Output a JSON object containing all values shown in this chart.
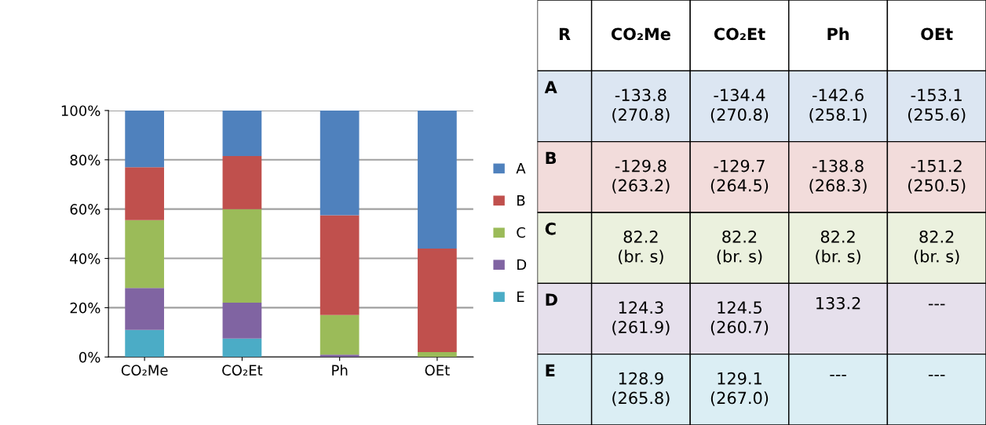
{
  "chart_data": [
    {
      "type": "bar",
      "stacked": true,
      "categories": [
        "CO₂Me",
        "CO₂Et",
        "Ph",
        "OEt"
      ],
      "ylim": [
        0,
        100
      ],
      "yticks": [
        {
          "value": 0,
          "label": "0%"
        },
        {
          "value": 20,
          "label": "20%"
        },
        {
          "value": 40,
          "label": "40%"
        },
        {
          "value": 60,
          "label": "60%"
        },
        {
          "value": 80,
          "label": "80%"
        },
        {
          "value": 100,
          "label": "100%"
        }
      ],
      "grid": "y",
      "legend": "right",
      "series": [
        {
          "name": "E",
          "color": "#4bacc6",
          "values": [
            11,
            7.5,
            0,
            0
          ]
        },
        {
          "name": "D",
          "color": "#8064a2",
          "values": [
            17,
            14.5,
            1,
            0
          ]
        },
        {
          "name": "C",
          "color": "#9bbb59",
          "values": [
            27.5,
            38,
            16,
            2
          ]
        },
        {
          "name": "B",
          "color": "#c0504d",
          "values": [
            21.5,
            21.5,
            40.5,
            42
          ]
        },
        {
          "name": "A",
          "color": "#4f81bd",
          "values": [
            23,
            18.5,
            42.5,
            56
          ]
        }
      ]
    },
    {
      "type": "other",
      "ylabel": "R",
      "categories": [
        "CO₂Me",
        "CO₂Et",
        "Ph",
        "OEt"
      ],
      "y_categories": [
        "A",
        "B",
        "C",
        "D",
        "E"
      ],
      "cell_labels": [
        [
          "-133.8\n(270.8)",
          "-134.4\n(270.8)",
          "-142.6\n(258.1)",
          "-153.1\n(255.6)"
        ],
        [
          "-129.8\n(263.2)",
          "-129.7\n(264.5)",
          "-138.8\n(268.3)",
          "-151.2\n(250.5)"
        ],
        [
          "82.2\n(br. s)",
          "82.2\n(br. s)",
          "82.2\n(br. s)",
          "82.2\n(br. s)"
        ],
        [
          "124.3\n(261.9)",
          "124.5\n(260.7)",
          "133.2",
          "---"
        ],
        [
          "128.9\n(265.8)",
          "129.1\n(267.0)",
          "---",
          "---"
        ]
      ]
    }
  ]
}
